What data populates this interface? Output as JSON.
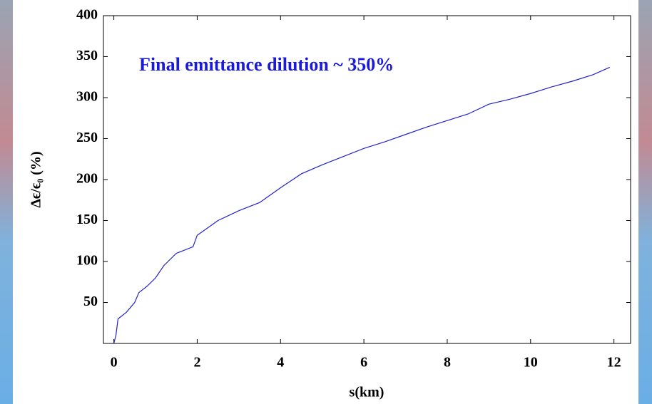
{
  "chart_data": {
    "type": "line",
    "annotation": "Final emittance dilution ~ 350%",
    "x_label": "s(km)",
    "y_label": "Δϵ/ϵ₀ (%)",
    "x": [
      0,
      0.05,
      0.1,
      0.3,
      0.5,
      0.6,
      0.8,
      1.0,
      1.2,
      1.5,
      1.9,
      2.0,
      2.5,
      3.0,
      3.5,
      4.0,
      4.5,
      5.0,
      5.5,
      6.0,
      6.5,
      7.0,
      7.5,
      8.0,
      8.5,
      9.0,
      9.5,
      10.0,
      10.5,
      11.0,
      11.5,
      11.9
    ],
    "values": [
      0,
      10,
      30,
      38,
      50,
      62,
      70,
      80,
      95,
      110,
      118,
      132,
      150,
      162,
      172,
      190,
      207,
      218,
      228,
      238,
      246,
      255,
      264,
      272,
      280,
      292,
      298,
      305,
      313,
      320,
      328,
      337
    ],
    "color": "#2222cc",
    "xlim": [
      -0.25,
      12.4
    ],
    "xticks": [
      0,
      2,
      4,
      6,
      8,
      10,
      12
    ],
    "ylim": [
      0,
      400
    ],
    "yticks": [
      50,
      100,
      150,
      200,
      250,
      300,
      350,
      400
    ],
    "annotation_color": "#1a1adc"
  }
}
